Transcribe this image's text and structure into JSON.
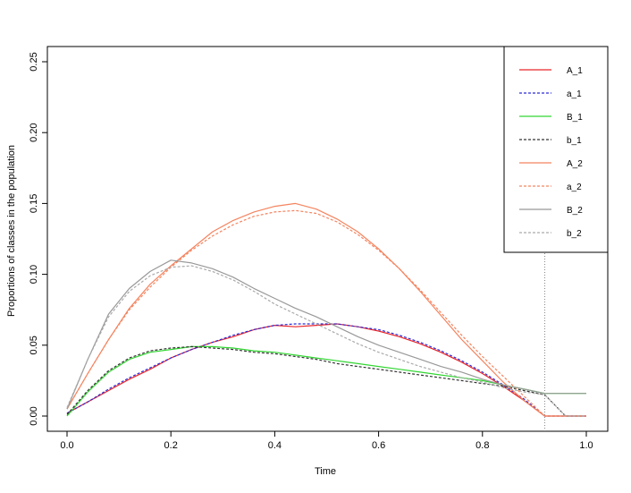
{
  "colors": {
    "A_1": "#e8262a",
    "a_1": "#2b2bd6",
    "B_1": "#33d633",
    "b_1": "#333333",
    "A_2": "#f4845f",
    "a_2": "#f4845f",
    "B_2": "#999999",
    "b_2": "#aaaaaa"
  },
  "chart_data": {
    "type": "line",
    "title": "",
    "xlabel": "Time",
    "ylabel": "Proportions of classes in the population",
    "xlim": [
      0,
      1
    ],
    "ylim": [
      0,
      0.25
    ],
    "x_ticks": [
      "0.0",
      "0.2",
      "0.4",
      "0.6",
      "0.8",
      "1.0"
    ],
    "y_ticks": [
      "0.00",
      "0.05",
      "0.10",
      "0.15",
      "0.20",
      "0.25"
    ],
    "legend_position": "top-right",
    "vertical_reference_line_x": 0.92,
    "x": [
      0,
      0.04,
      0.08,
      0.12,
      0.16,
      0.2,
      0.24,
      0.28,
      0.32,
      0.36,
      0.4,
      0.44,
      0.48,
      0.52,
      0.56,
      0.6,
      0.64,
      0.68,
      0.72,
      0.76,
      0.8,
      0.84,
      0.88,
      0.92,
      0.96,
      1.0
    ],
    "series": [
      {
        "name": "A_1",
        "style": "solid",
        "values": [
          0.002,
          0.01,
          0.018,
          0.026,
          0.033,
          0.041,
          0.047,
          0.052,
          0.056,
          0.061,
          0.064,
          0.063,
          0.064,
          0.065,
          0.063,
          0.06,
          0.056,
          0.051,
          0.045,
          0.038,
          0.03,
          0.021,
          0.011,
          0.0,
          0.0,
          0.0
        ]
      },
      {
        "name": "a_1",
        "style": "dashed",
        "values": [
          0.002,
          0.01,
          0.019,
          0.027,
          0.034,
          0.041,
          0.047,
          0.052,
          0.057,
          0.061,
          0.064,
          0.065,
          0.065,
          0.065,
          0.063,
          0.061,
          0.057,
          0.052,
          0.046,
          0.039,
          0.031,
          0.022,
          0.012,
          0.0,
          0.0,
          0.0
        ]
      },
      {
        "name": "B_1",
        "style": "solid",
        "values": [
          0.0,
          0.017,
          0.031,
          0.04,
          0.045,
          0.047,
          0.049,
          0.049,
          0.048,
          0.046,
          0.045,
          0.043,
          0.041,
          0.039,
          0.037,
          0.035,
          0.033,
          0.031,
          0.029,
          0.027,
          0.025,
          0.022,
          0.019,
          0.016,
          0.016,
          0.016
        ]
      },
      {
        "name": "b_1",
        "style": "dashed",
        "values": [
          0.001,
          0.018,
          0.032,
          0.041,
          0.046,
          0.048,
          0.049,
          0.048,
          0.047,
          0.045,
          0.044,
          0.042,
          0.04,
          0.037,
          0.035,
          0.033,
          0.031,
          0.029,
          0.027,
          0.025,
          0.023,
          0.021,
          0.018,
          0.015,
          0.0,
          0.0
        ]
      },
      {
        "name": "A_2",
        "style": "solid",
        "values": [
          0.005,
          0.03,
          0.054,
          0.076,
          0.093,
          0.106,
          0.118,
          0.13,
          0.138,
          0.144,
          0.148,
          0.15,
          0.146,
          0.139,
          0.13,
          0.118,
          0.104,
          0.088,
          0.071,
          0.054,
          0.039,
          0.024,
          0.011,
          0.0,
          0.0,
          0.0
        ]
      },
      {
        "name": "a_2",
        "style": "dashed",
        "values": [
          0.005,
          0.03,
          0.054,
          0.075,
          0.091,
          0.105,
          0.117,
          0.127,
          0.135,
          0.141,
          0.144,
          0.145,
          0.143,
          0.137,
          0.128,
          0.117,
          0.104,
          0.089,
          0.073,
          0.057,
          0.042,
          0.028,
          0.014,
          0.0,
          0.0,
          0.0
        ]
      },
      {
        "name": "B_2",
        "style": "solid",
        "values": [
          0.005,
          0.04,
          0.072,
          0.09,
          0.102,
          0.11,
          0.108,
          0.104,
          0.098,
          0.09,
          0.083,
          0.076,
          0.07,
          0.063,
          0.056,
          0.05,
          0.045,
          0.04,
          0.035,
          0.031,
          0.026,
          0.022,
          0.019,
          0.016,
          0.016,
          0.016
        ]
      },
      {
        "name": "b_2",
        "style": "dashed",
        "values": [
          0.006,
          0.04,
          0.07,
          0.088,
          0.099,
          0.105,
          0.106,
          0.102,
          0.096,
          0.088,
          0.079,
          0.072,
          0.065,
          0.058,
          0.051,
          0.045,
          0.04,
          0.035,
          0.031,
          0.027,
          0.024,
          0.02,
          0.017,
          0.015,
          0.0,
          0.0
        ]
      }
    ]
  }
}
